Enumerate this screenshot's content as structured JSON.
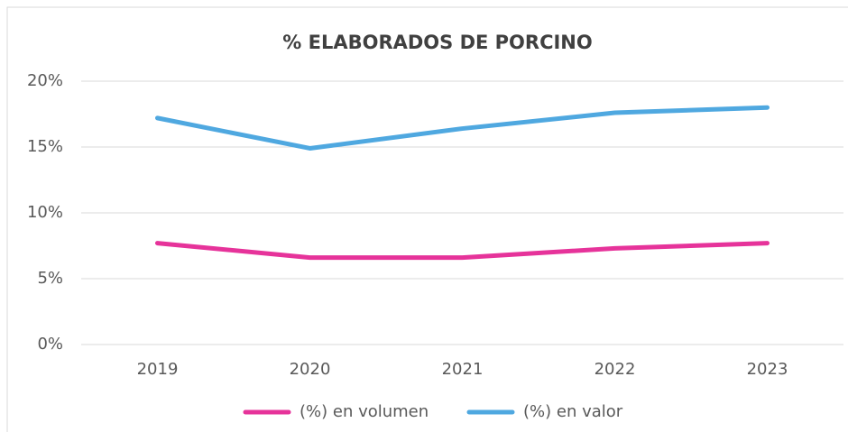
{
  "chart_data": {
    "type": "line",
    "title": "% ELABORADOS DE PORCINO",
    "categories": [
      "2019",
      "2020",
      "2021",
      "2022",
      "2023"
    ],
    "series": [
      {
        "name": "(%) en volumen",
        "color": "#e6339a",
        "values": [
          7.7,
          6.6,
          6.6,
          7.3,
          7.7
        ]
      },
      {
        "name": "(%) en valor",
        "color": "#4fa8e0",
        "values": [
          17.2,
          14.9,
          16.4,
          17.6,
          18.0
        ]
      }
    ],
    "ylim": [
      0,
      20
    ],
    "yticks": [
      {
        "value": 0,
        "label": "0%"
      },
      {
        "value": 5,
        "label": "5%"
      },
      {
        "value": 10,
        "label": "10%"
      },
      {
        "value": 15,
        "label": "15%"
      },
      {
        "value": 20,
        "label": "20%"
      }
    ],
    "grid": true,
    "legend": "bottom"
  }
}
